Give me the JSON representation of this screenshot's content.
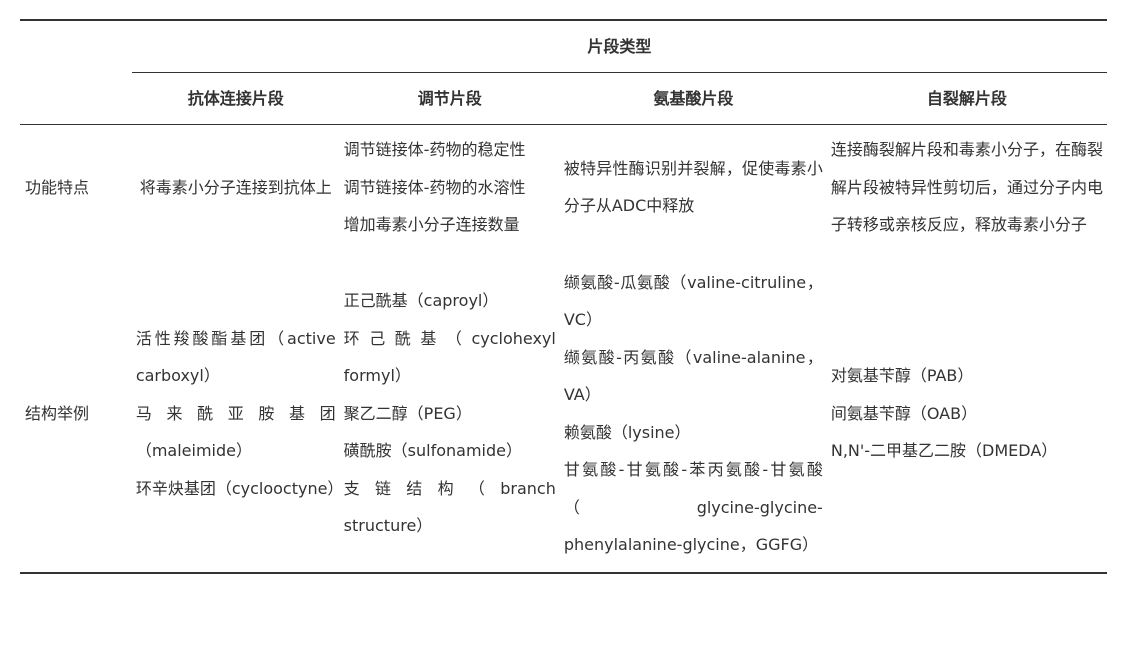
{
  "table": {
    "group_header": "片段类型",
    "columns": [
      "抗体连接片段",
      "调节片段",
      "氨基酸片段",
      "自裂解片段"
    ],
    "rows": [
      {
        "label": "功能特点",
        "cells": [
          [
            "将毒素小分子连接到抗体上"
          ],
          [
            "调节链接体-药物的稳定性",
            "调节链接体-药物的水溶性",
            "增加毒素小分子连接数量"
          ],
          [
            "被特异性酶识别并裂解，促使毒素小分子从ADC中释放"
          ],
          [
            "连接酶裂解片段和毒素小分子，在酶裂解片段被特异性剪切后，通过分子内电子转移或亲核反应，释放毒素小分子"
          ]
        ]
      },
      {
        "label": "结构举例",
        "cells": [
          [
            "活性羧酸酯基团（active carboxyl）",
            "马来酰亚胺基团（maleimide）",
            "环辛炔基团（cyclooctyne）"
          ],
          [
            "正己酰基（caproyl）",
            "环己酰基（cyclohexyl formyl）",
            "聚乙二醇（PEG）",
            "磺酰胺（sulfonamide）",
            "支链结构（branch structure）"
          ],
          [
            "缬氨酸-瓜氨酸（valine-citruline，VC）",
            "缬氨酸-丙氨酸（valine-alanine，VA）",
            "赖氨酸（lysine）",
            "甘氨酸-甘氨酸-苯丙氨酸-甘氨酸（glycine-glycine-phenylalanine-glycine，GGFG）"
          ],
          [
            "对氨基苄醇（PAB）",
            "间氨基苄醇（OAB）",
            "N,N'-二甲基乙二胺（DMEDA）"
          ]
        ]
      }
    ]
  }
}
